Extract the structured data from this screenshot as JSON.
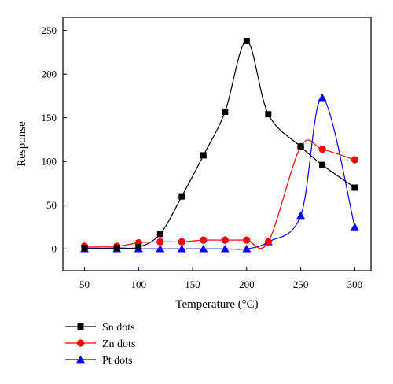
{
  "chart_data": {
    "type": "line",
    "xlabel": "Temperature (°C)",
    "ylabel": "Response",
    "xlim": [
      30,
      315
    ],
    "ylim": [
      -25,
      265
    ],
    "xticks": [
      50,
      100,
      150,
      200,
      250,
      300
    ],
    "yticks": [
      0,
      50,
      100,
      150,
      200,
      250
    ],
    "grid": false,
    "legend_position": "bottom-left, below plot",
    "series": [
      {
        "name": "Sn dots",
        "color": "#000000",
        "marker": "square",
        "x": [
          50,
          80,
          100,
          120,
          140,
          160,
          180,
          200,
          220,
          250,
          270,
          300
        ],
        "y": [
          1,
          1,
          2,
          17,
          60,
          107,
          157,
          238,
          154,
          117,
          96,
          70
        ]
      },
      {
        "name": "Zn dots",
        "color": "#ff0000",
        "marker": "circle",
        "x": [
          50,
          80,
          100,
          120,
          140,
          160,
          180,
          200,
          220,
          250,
          270,
          300
        ],
        "y": [
          3,
          3,
          7,
          8,
          8,
          10,
          10,
          10,
          8,
          117,
          114,
          102
        ]
      },
      {
        "name": "Pt dots",
        "color": "#0000ff",
        "marker": "triangle",
        "x": [
          50,
          80,
          100,
          120,
          140,
          160,
          180,
          200,
          220,
          250,
          270,
          300
        ],
        "y": [
          0,
          0,
          0,
          0,
          0,
          0,
          0,
          0,
          8,
          38,
          173,
          25
        ]
      }
    ]
  }
}
